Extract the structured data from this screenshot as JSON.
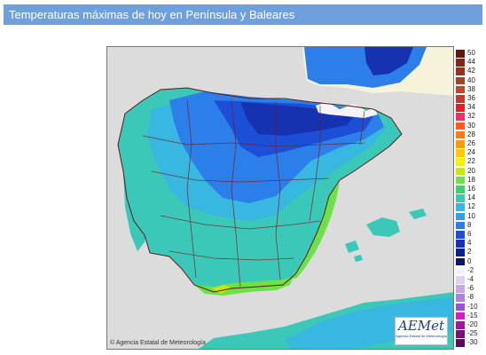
{
  "header": {
    "title": "Temperaturas máximas de hoy en Península y Baleares"
  },
  "map": {
    "copyright": "© Agencia Estatal de Meteorología",
    "logo_text": "AEMet",
    "logo_subtitle": "Agencia Estatal de Meteorología",
    "colors": {
      "sea": "#dcdcdc",
      "france": "#f7f3da",
      "land_base": "#3cc8b8",
      "cold_core": "#1d4fd6",
      "very_cold": "#0c2f9a",
      "cool": "#2fa0e0",
      "warm_coast": "#4ee07a",
      "warmer": "#a8e040",
      "borders": "#7a1a1a"
    }
  },
  "legend": {
    "entries": [
      {
        "label": "50",
        "color": "#5a1a10"
      },
      {
        "label": "44",
        "color": "#7a2a18"
      },
      {
        "label": "42",
        "color": "#913422"
      },
      {
        "label": "40",
        "color": "#a5402a"
      },
      {
        "label": "38",
        "color": "#b44a30"
      },
      {
        "label": "36",
        "color": "#c23a35"
      },
      {
        "label": "34",
        "color": "#e0202c"
      },
      {
        "label": "32",
        "color": "#f0306a"
      },
      {
        "label": "30",
        "color": "#ff5a20"
      },
      {
        "label": "28",
        "color": "#ff7a10"
      },
      {
        "label": "26",
        "color": "#ff9a00"
      },
      {
        "label": "24",
        "color": "#ffc800"
      },
      {
        "label": "22",
        "color": "#fff000"
      },
      {
        "label": "20",
        "color": "#c8e800"
      },
      {
        "label": "18",
        "color": "#6ee048"
      },
      {
        "label": "16",
        "color": "#3cd070"
      },
      {
        "label": "14",
        "color": "#3cc8b8"
      },
      {
        "label": "12",
        "color": "#38b8e0"
      },
      {
        "label": "10",
        "color": "#2fa0e0"
      },
      {
        "label": "8",
        "color": "#2c7ee8"
      },
      {
        "label": "6",
        "color": "#1d4fd6"
      },
      {
        "label": "4",
        "color": "#1632b0"
      },
      {
        "label": "2",
        "color": "#0c1f8c"
      },
      {
        "label": "0",
        "color": "#0a1660"
      },
      {
        "label": "-2",
        "color": "#f4f4f8"
      },
      {
        "label": "-4",
        "color": "#ddd0f0"
      },
      {
        "label": "-6",
        "color": "#c4a8e8"
      },
      {
        "label": "-8",
        "color": "#b080e0"
      },
      {
        "label": "-10",
        "color": "#9a50d8"
      },
      {
        "label": "-15",
        "color": "#d020c0"
      },
      {
        "label": "-20",
        "color": "#a01898"
      },
      {
        "label": "-25",
        "color": "#7a1070"
      },
      {
        "label": "-30",
        "color": "#5a0a58"
      }
    ]
  }
}
